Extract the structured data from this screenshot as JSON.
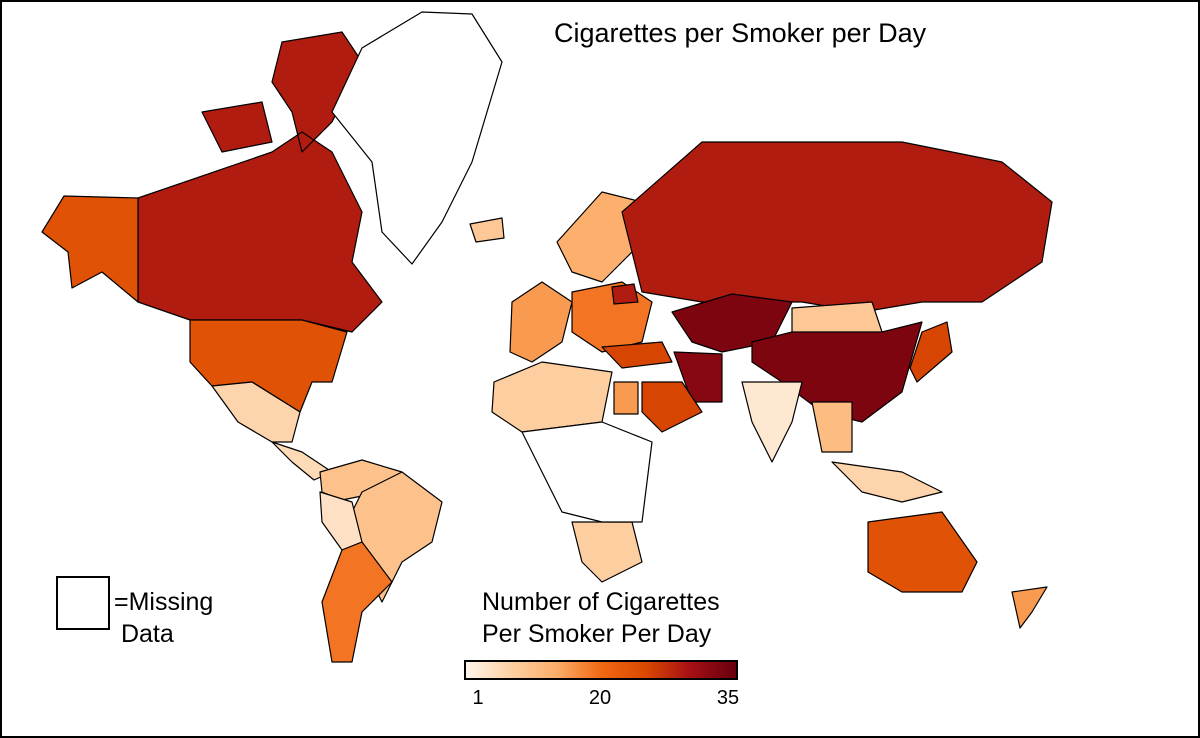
{
  "title": "Cigarettes per Smoker per Day",
  "missing_legend": {
    "label": "=Missing\n Data",
    "fill": "#ffffff"
  },
  "colorbar": {
    "title": "Number of Cigarettes\nPer Smoker Per Day",
    "min": 1,
    "max": 35,
    "ticks": [
      "1",
      "20",
      "35"
    ],
    "colors": [
      "#fff5eb",
      "#fdd0a2",
      "#fdae6b",
      "#f16913",
      "#d94801",
      "#a50f15",
      "#67000d"
    ]
  },
  "chart_data": {
    "type": "choropleth",
    "title": "Cigarettes per Smoker per Day",
    "value_label": "Number of Cigarettes Per Smoker Per Day",
    "scale": {
      "min": 1,
      "max": 35
    },
    "regions": [
      {
        "name": "Canada",
        "value": 28
      },
      {
        "name": "United States",
        "value": 22
      },
      {
        "name": "Alaska",
        "value": 22
      },
      {
        "name": "Greenland",
        "value": null
      },
      {
        "name": "Mexico",
        "value": 6
      },
      {
        "name": "Central America",
        "value": 5
      },
      {
        "name": "Colombia / Venezuela",
        "value": 9
      },
      {
        "name": "Brazil",
        "value": 9
      },
      {
        "name": "Peru / Bolivia",
        "value": 4
      },
      {
        "name": "Argentina / Chile",
        "value": 17
      },
      {
        "name": "Iceland",
        "value": 8
      },
      {
        "name": "Western Europe",
        "value": 14
      },
      {
        "name": "Scandinavia",
        "value": 12
      },
      {
        "name": "Eastern Europe",
        "value": 17
      },
      {
        "name": "Belarus",
        "value": 28
      },
      {
        "name": "Turkey",
        "value": 24
      },
      {
        "name": "Russia",
        "value": 28
      },
      {
        "name": "Kazakhstan / Central Asia",
        "value": 33
      },
      {
        "name": "Mongolia",
        "value": 8
      },
      {
        "name": "China",
        "value": 33
      },
      {
        "name": "Japan",
        "value": 24
      },
      {
        "name": "Iran",
        "value": 32
      },
      {
        "name": "Saudi Arabia",
        "value": 24
      },
      {
        "name": "Egypt",
        "value": 14
      },
      {
        "name": "India",
        "value": 3
      },
      {
        "name": "Southeast Asia",
        "value": 10
      },
      {
        "name": "Indonesia",
        "value": 6
      },
      {
        "name": "Australia",
        "value": 22
      },
      {
        "name": "New Zealand",
        "value": 14
      },
      {
        "name": "North Africa (partial)",
        "value": 7
      },
      {
        "name": "Southern Africa (partial)",
        "value": 7
      },
      {
        "name": "Central Africa",
        "value": null
      }
    ]
  }
}
